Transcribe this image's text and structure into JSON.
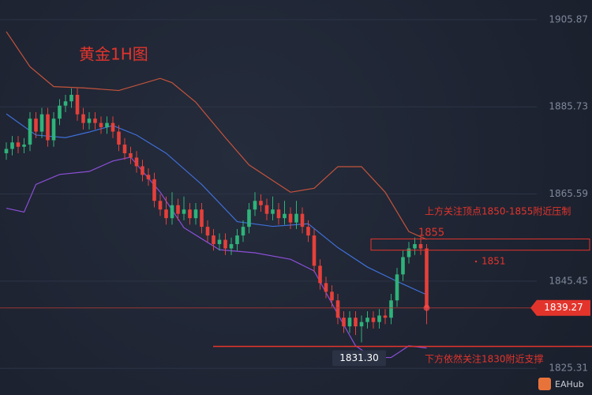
{
  "chart_data": {
    "type": "candlestick",
    "title": "黄金1H图",
    "open": [
      1875,
      1876,
      1877.5,
      1876.5,
      1877,
      1883,
      1880,
      1884,
      1878,
      1883,
      1886,
      1887,
      1888.5,
      1884,
      1882,
      1883,
      1882,
      1881,
      1882,
      1880,
      1877,
      1875,
      1874,
      1872,
      1870,
      1869,
      1864,
      1862,
      1860,
      1863,
      1861,
      1862,
      1860,
      1862,
      1858,
      1856,
      1854,
      1855,
      1853,
      1854,
      1856,
      1858,
      1862,
      1864,
      1863,
      1861,
      1862,
      1860,
      1861,
      1859,
      1861,
      1858,
      1856,
      1849,
      1845,
      1843,
      1841,
      1837,
      1835,
      1837,
      1835,
      1836,
      1837,
      1836,
      1837.5,
      1837,
      1841,
      1847,
      1851,
      1853,
      1854,
      1853
    ],
    "high": [
      1877.5,
      1879,
      1879,
      1878.5,
      1884.5,
      1884.5,
      1885.5,
      1885.5,
      1884.5,
      1887.5,
      1888.5,
      1890,
      1890,
      1885.5,
      1884.5,
      1884.5,
      1883.5,
      1883.5,
      1883.5,
      1881.5,
      1878.5,
      1876.5,
      1875.5,
      1873.5,
      1871.5,
      1870.5,
      1865.5,
      1865,
      1866,
      1864.5,
      1865,
      1863.5,
      1863.5,
      1863.5,
      1859.5,
      1857.5,
      1856.5,
      1856.5,
      1855.5,
      1857.5,
      1859.5,
      1863.5,
      1866,
      1865.5,
      1864.5,
      1865,
      1863.5,
      1864,
      1862.5,
      1864,
      1862.5,
      1859.5,
      1857.5,
      1850.5,
      1846.5,
      1844.5,
      1842.5,
      1838.5,
      1838.5,
      1838.5,
      1837.5,
      1838.5,
      1838.5,
      1839,
      1839,
      1842.5,
      1848.5,
      1852.5,
      1854.5,
      1855.5,
      1855.5,
      1854
    ],
    "low": [
      1873.5,
      1874.5,
      1875,
      1875,
      1875.5,
      1878.5,
      1878.5,
      1876.5,
      1876.5,
      1881.5,
      1884.5,
      1885.5,
      1882.5,
      1880.5,
      1880.5,
      1880.5,
      1879.5,
      1879.5,
      1878.5,
      1875.5,
      1873.5,
      1872.5,
      1870.5,
      1868.5,
      1867.5,
      1862.5,
      1860.5,
      1858.5,
      1858.5,
      1859.5,
      1859.5,
      1858.5,
      1858.5,
      1856.5,
      1854.5,
      1852.5,
      1852.5,
      1851.5,
      1851.5,
      1852.5,
      1854.5,
      1856.5,
      1860.5,
      1861.5,
      1859.5,
      1859.5,
      1858.5,
      1858.5,
      1857.5,
      1857.5,
      1856.5,
      1854.5,
      1847.5,
      1843.5,
      1841.5,
      1839.5,
      1835.5,
      1833.5,
      1833.5,
      1833,
      1831.3,
      1834.5,
      1834.5,
      1834.5,
      1835.5,
      1835.5,
      1839.5,
      1845.5,
      1849.5,
      1851.5,
      1851.5,
      1835.5
    ],
    "close": [
      1876,
      1877.5,
      1876.5,
      1877,
      1883,
      1880,
      1884,
      1878,
      1883,
      1886,
      1887,
      1888.5,
      1884,
      1882,
      1883,
      1882,
      1881,
      1882,
      1880,
      1877,
      1875,
      1874,
      1872,
      1870,
      1869,
      1864,
      1862,
      1860,
      1863,
      1861,
      1862,
      1860,
      1862,
      1858,
      1856,
      1854,
      1855,
      1853,
      1854,
      1856,
      1858,
      1862,
      1864,
      1863,
      1861,
      1862,
      1860,
      1861,
      1859,
      1861,
      1858,
      1856,
      1849,
      1845,
      1843,
      1841,
      1837,
      1835,
      1837,
      1835,
      1836,
      1837,
      1836,
      1837.5,
      1837,
      1841,
      1847,
      1851,
      1853,
      1854,
      1853,
      1839.27
    ],
    "up_color": "#2fb37a",
    "down_color": "#e5403a",
    "bands": [
      {
        "color": "#c4533c",
        "x": [
          0,
          4,
          8,
          13,
          19,
          26,
          28,
          32,
          37,
          41,
          48,
          52,
          56,
          60,
          64,
          68,
          71
        ],
        "values": [
          1903.1,
          1895.0,
          1890.4,
          1890.1,
          1889.5,
          1892.3,
          1891.3,
          1886.8,
          1878.6,
          1872.3,
          1866.0,
          1866.9,
          1871.9,
          1871.9,
          1866.0,
          1856.9,
          1855.1
        ]
      },
      {
        "color": "#3f6fd8",
        "x": [
          0,
          5,
          10,
          14,
          18,
          22,
          27,
          33,
          39,
          45,
          51,
          56,
          61,
          66,
          71
        ],
        "values": [
          1884.1,
          1879.2,
          1878.6,
          1879.9,
          1881.4,
          1879.2,
          1875.0,
          1867.8,
          1859.2,
          1858.1,
          1858.7,
          1853.2,
          1848.7,
          1845.4,
          1842.3
        ]
      },
      {
        "color": "#8b4fd8",
        "x": [
          0,
          3,
          5,
          9,
          14,
          18,
          21,
          26,
          30,
          36,
          42,
          48,
          52,
          56,
          59,
          62,
          65,
          68,
          71
        ],
        "values": [
          1862.3,
          1861.4,
          1867.8,
          1870.1,
          1870.8,
          1873.2,
          1874.1,
          1866.0,
          1857.8,
          1852.7,
          1852.0,
          1850.5,
          1847.8,
          1837.8,
          1830.5,
          1827.8,
          1827.8,
          1830.5,
          1830.0
        ]
      }
    ],
    "ylim": [
      1819.14,
      1910.41
    ],
    "yticks": [
      1825.31,
      1845.45,
      1865.59,
      1885.73,
      1905.87
    ],
    "grid": true,
    "resistance_zone": [
      1852.6,
      1855.2
    ],
    "support_level": 1830.37,
    "annotations": [
      {
        "text": "上方关注顶点1850-1855附近压制"
      },
      {
        "text": "1855"
      },
      {
        "text": "1851"
      },
      {
        "text": "下方依然关注1830附近支撑"
      }
    ],
    "low_marker": {
      "value": 1831.3,
      "label": "1831.30"
    },
    "brand": "EAHub"
  }
}
